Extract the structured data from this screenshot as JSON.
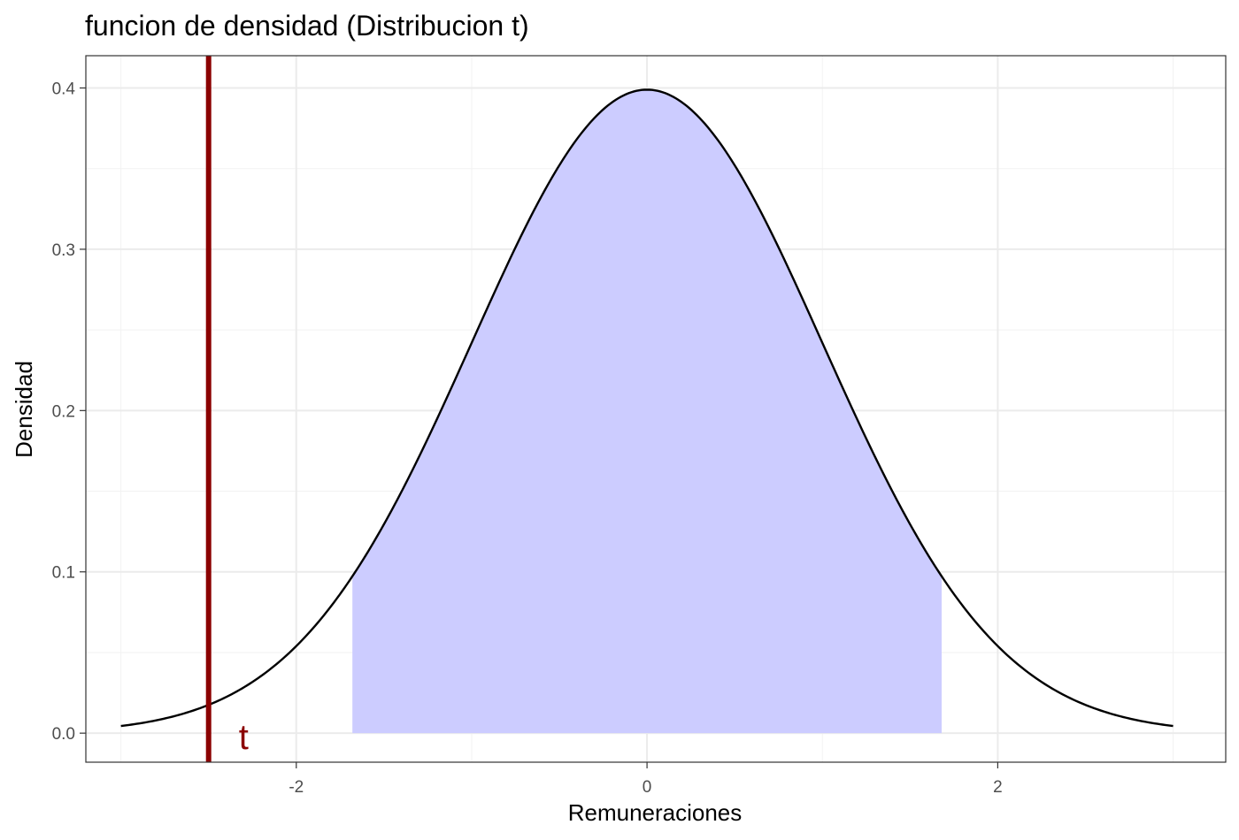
{
  "chart_data": {
    "type": "area",
    "title": "funcion de densidad (Distribucion t)",
    "xlabel": "Remuneraciones",
    "ylabel": "Densidad",
    "xlim": [
      -3.2,
      3.3
    ],
    "ylim": [
      -0.018,
      0.42
    ],
    "x_ticks": [
      -2,
      0,
      2
    ],
    "x_tick_labels": [
      "-2",
      "0",
      "2"
    ],
    "y_ticks": [
      0.0,
      0.1,
      0.2,
      0.3,
      0.4
    ],
    "y_tick_labels": [
      "0.0",
      "0.1",
      "0.2",
      "0.3",
      "0.4"
    ],
    "grid": true,
    "curve": {
      "distribution": "standard-normal",
      "x_from": -3,
      "x_to": 3,
      "color": "#000000"
    },
    "shaded_region": {
      "x_from": -1.68,
      "x_to": 1.68,
      "color": "#ccccff"
    },
    "vline": {
      "x": -2.5,
      "color": "#8b0000"
    },
    "annotation": {
      "text": "t",
      "x": -2.3,
      "y": 0.0,
      "color": "#8b0000"
    }
  }
}
